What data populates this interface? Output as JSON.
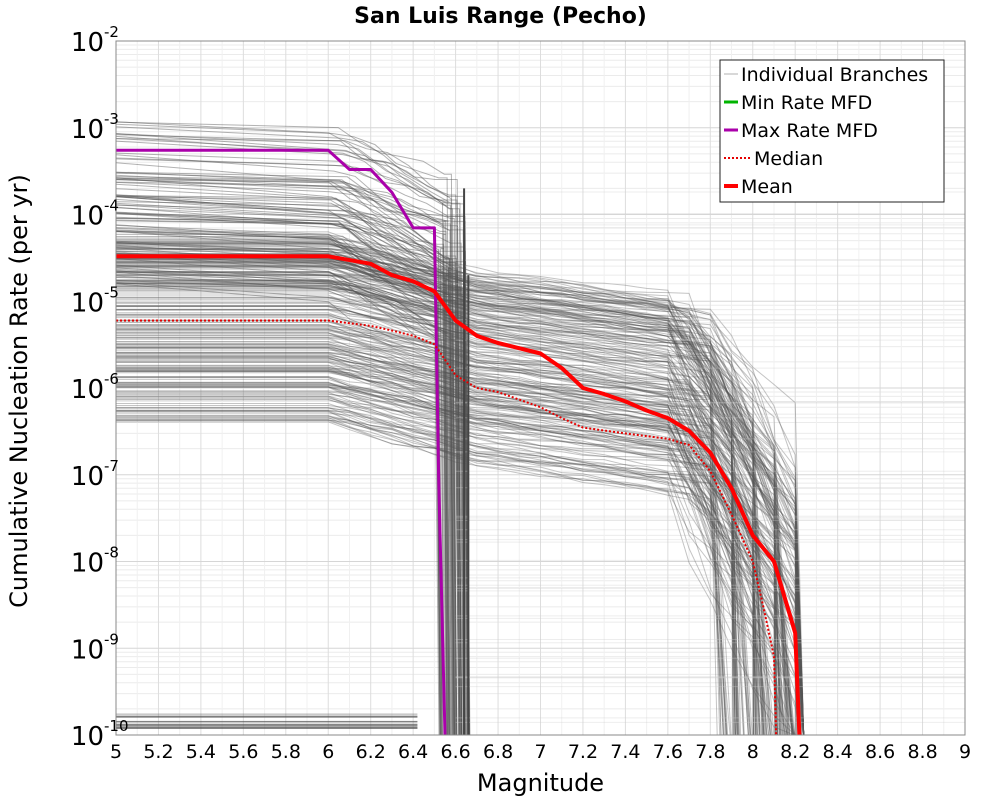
{
  "chart_data": {
    "type": "line",
    "title": "San Luis Range (Pecho)",
    "xlabel": "Magnitude",
    "ylabel": "Cumulative Nucleation Rate (per yr)",
    "xlim": [
      5,
      9
    ],
    "ylim_exponents": [
      -10,
      -2
    ],
    "yscale": "log",
    "grid": true,
    "x_ticks": [
      "5",
      "5.2",
      "5.4",
      "5.6",
      "5.8",
      "6",
      "6.2",
      "6.4",
      "6.6",
      "6.8",
      "7",
      "7.2",
      "7.4",
      "7.6",
      "7.8",
      "8",
      "8.2",
      "8.4",
      "8.6",
      "8.8",
      "9"
    ],
    "y_ticks": [
      {
        "base": "10",
        "exp": "-2"
      },
      {
        "base": "10",
        "exp": "-3"
      },
      {
        "base": "10",
        "exp": "-4"
      },
      {
        "base": "10",
        "exp": "-5"
      },
      {
        "base": "10",
        "exp": "-6"
      },
      {
        "base": "10",
        "exp": "-7"
      },
      {
        "base": "10",
        "exp": "-8"
      },
      {
        "base": "10",
        "exp": "-9"
      },
      {
        "base": "10",
        "exp": "-10"
      }
    ],
    "legend_position": "top-right",
    "legend": [
      {
        "label": "Individual Branches",
        "color": "#b0b0b0",
        "style": "solid-thin"
      },
      {
        "label": "Min Rate MFD",
        "color": "#00b400",
        "style": "solid"
      },
      {
        "label": "Max Rate MFD",
        "color": "#aa00aa",
        "style": "solid"
      },
      {
        "label": "Median",
        "color": "#e60000",
        "style": "dotted"
      },
      {
        "label": "Mean",
        "color": "#ff0000",
        "style": "solid-thick"
      }
    ],
    "series": [
      {
        "name": "Max Rate MFD",
        "color": "#aa00aa",
        "x": [
          5.0,
          6.0,
          6.1,
          6.2,
          6.3,
          6.4,
          6.5,
          6.52,
          6.55
        ],
        "y": [
          0.00055,
          0.00055,
          0.00033,
          0.00033,
          0.00018,
          7e-05,
          7e-05,
          1e-07,
          1e-10
        ]
      },
      {
        "name": "Mean",
        "color": "#ff0000",
        "x": [
          5.0,
          6.0,
          6.2,
          6.3,
          6.4,
          6.5,
          6.6,
          6.7,
          6.8,
          7.0,
          7.1,
          7.2,
          7.3,
          7.4,
          7.5,
          7.6,
          7.7,
          7.8,
          7.9,
          8.0,
          8.1,
          8.2,
          8.22
        ],
        "y": [
          3.3e-05,
          3.3e-05,
          2.7e-05,
          2e-05,
          1.7e-05,
          1.3e-05,
          6e-06,
          4e-06,
          3.3e-06,
          2.5e-06,
          1.7e-06,
          1e-06,
          8.5e-07,
          7e-07,
          5.5e-07,
          4.5e-07,
          3.2e-07,
          1.8e-07,
          7e-08,
          2e-08,
          1e-08,
          1.5e-09,
          1e-10
        ]
      },
      {
        "name": "Median",
        "color": "#e60000",
        "x": [
          5.0,
          6.0,
          6.2,
          6.3,
          6.4,
          6.5,
          6.6,
          6.7,
          6.8,
          7.0,
          7.1,
          7.2,
          7.4,
          7.6,
          7.7,
          7.8,
          7.9,
          8.0,
          8.05,
          8.1,
          8.11
        ],
        "y": [
          6e-06,
          6e-06,
          5.2e-06,
          4.6e-06,
          4e-06,
          3.2e-06,
          1.4e-06,
          1e-06,
          9e-07,
          6e-07,
          4.5e-07,
          3.5e-07,
          3e-07,
          2.6e-07,
          2.2e-07,
          1.1e-07,
          3.5e-08,
          1e-08,
          3e-09,
          8e-10,
          1e-10
        ]
      }
    ]
  }
}
